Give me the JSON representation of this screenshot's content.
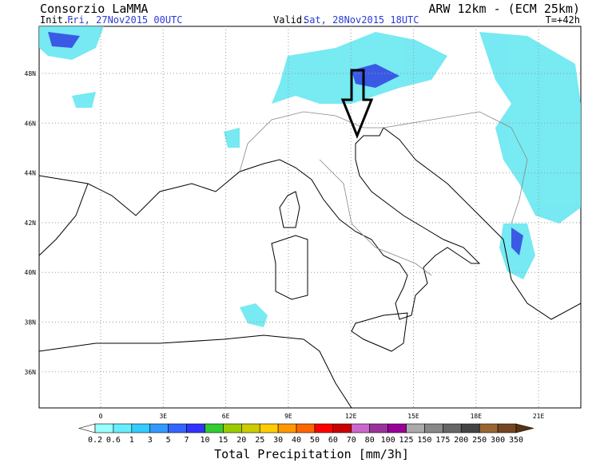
{
  "header": {
    "source": "Consorzio LaMMA",
    "init_label": "Init.:",
    "init_value": "Fri, 27Nov2015 00UTC",
    "model": "ARW 12km - (ECM 25km)",
    "valid_label": "Valid:",
    "valid_value": "Sat, 28Nov2015 18UTC",
    "lead_time": "T=+42h"
  },
  "map": {
    "lat_labels": [
      "48N",
      "46N",
      "44N",
      "42N",
      "40N",
      "38N",
      "36N"
    ],
    "lon_labels": [
      "0",
      "3E",
      "6E",
      "9E",
      "12E",
      "15E",
      "18E",
      "21E"
    ]
  },
  "legend": {
    "title": "Total Precipitation [mm/3h]",
    "levels": [
      0.2,
      0.6,
      1,
      3,
      5,
      7,
      10,
      15,
      20,
      25,
      30,
      40,
      50,
      60,
      70,
      80,
      100,
      125,
      150,
      175,
      200,
      250,
      300,
      350
    ],
    "colors": [
      "#ffffff",
      "#99ffff",
      "#66eeff",
      "#33ccff",
      "#3399ff",
      "#3366ff",
      "#3333ff",
      "#33cc33",
      "#99cc00",
      "#cccc00",
      "#ffcc00",
      "#ff9900",
      "#ff6600",
      "#ff0000",
      "#cc0000",
      "#cc66cc",
      "#993399",
      "#990099",
      "#aaaaaa",
      "#888888",
      "#666666",
      "#444444",
      "#996633",
      "#774422",
      "#553311"
    ]
  }
}
